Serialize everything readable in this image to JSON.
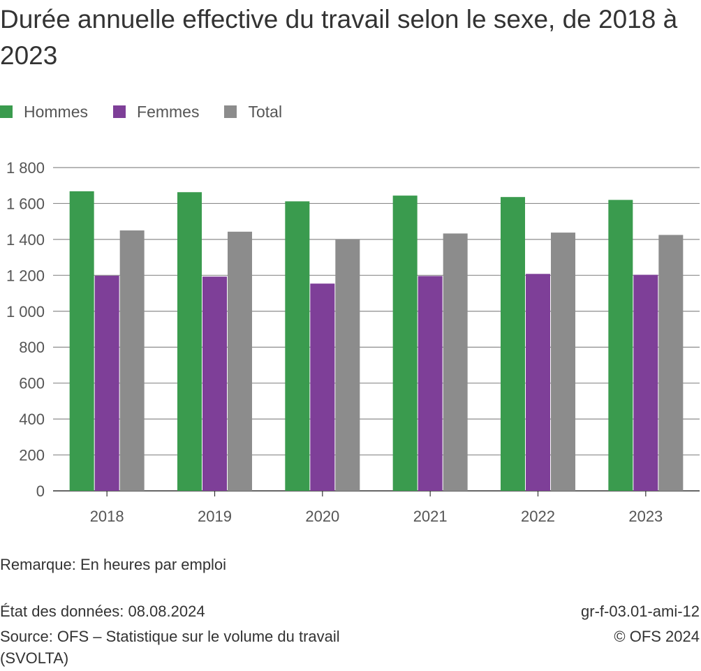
{
  "title": "Durée annuelle effective du travail selon le sexe, de 2018 à 2023",
  "legend": [
    {
      "label": "Hommes",
      "color": "#3a9b4e"
    },
    {
      "label": "Femmes",
      "color": "#7e3f98"
    },
    {
      "label": "Total",
      "color": "#8c8c8c"
    }
  ],
  "chart_data": {
    "type": "bar",
    "title": "Durée annuelle effective du travail selon le sexe, de 2018 à 2023",
    "categories": [
      "2018",
      "2019",
      "2020",
      "2021",
      "2022",
      "2023"
    ],
    "series": [
      {
        "name": "Hommes",
        "color": "#3a9b4e",
        "values": [
          1668,
          1663,
          1612,
          1644,
          1636,
          1620
        ]
      },
      {
        "name": "Femmes",
        "color": "#7e3f98",
        "values": [
          1198,
          1193,
          1154,
          1196,
          1208,
          1203
        ]
      },
      {
        "name": "Total",
        "color": "#8c8c8c",
        "values": [
          1450,
          1443,
          1398,
          1433,
          1438,
          1425
        ]
      }
    ],
    "ylim": [
      0,
      1800
    ],
    "yticks": [
      0,
      200,
      400,
      600,
      800,
      1000,
      1200,
      1400,
      1600,
      1800
    ],
    "ytick_labels": [
      "0",
      "200",
      "400",
      "600",
      "800",
      "1 000",
      "1 200",
      "1 400",
      "1 600",
      "1 800"
    ],
    "xlabel": "",
    "ylabel": "",
    "grid": true,
    "legend_position": "top-left"
  },
  "notes": {
    "remark": "Remarque: En heures par emploi",
    "data_state": "État des données: 08.08.2024",
    "source_line1": "Source: OFS – Statistique sur le volume du travail",
    "source_line2": "(SVOLTA)",
    "code": "gr-f-03.01-ami-12",
    "copyright": "© OFS 2024"
  }
}
